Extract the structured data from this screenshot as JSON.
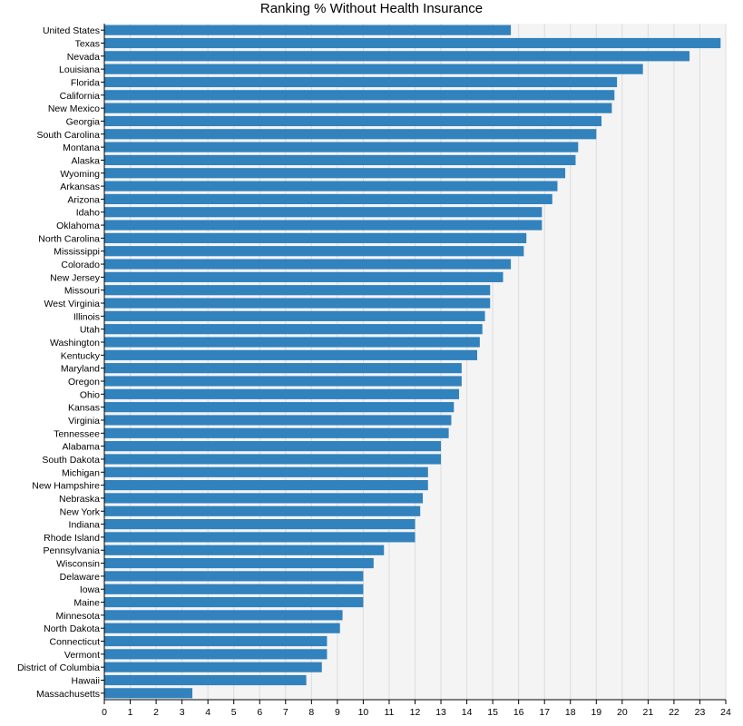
{
  "chart_data": {
    "type": "bar",
    "orientation": "horizontal",
    "title": "Ranking % Without Health Insurance",
    "xlabel": "",
    "ylabel": "",
    "xlim": [
      0,
      24
    ],
    "xticks": [
      0,
      1,
      2,
      3,
      4,
      5,
      6,
      7,
      8,
      9,
      10,
      11,
      12,
      13,
      14,
      15,
      16,
      17,
      18,
      19,
      20,
      21,
      22,
      23,
      24
    ],
    "grid": "vertical",
    "bar_color": "#3182bd",
    "plot_background": "#f4f4f4",
    "categories": [
      "United States",
      "Texas",
      "Nevada",
      "Louisiana",
      "Florida",
      "California",
      "New Mexico",
      "Georgia",
      "South Carolina",
      "Montana",
      "Alaska",
      "Wyoming",
      "Arkansas",
      "Arizona",
      "Idaho",
      "Oklahoma",
      "North Carolina",
      "Mississippi",
      "Colorado",
      "New Jersey",
      "Missouri",
      "West Virginia",
      "Illinois",
      "Utah",
      "Washington",
      "Kentucky",
      "Maryland",
      "Oregon",
      "Ohio",
      "Kansas",
      "Virginia",
      "Tennessee",
      "Alabama",
      "South Dakota",
      "Michigan",
      "New Hampshire",
      "Nebraska",
      "New York",
      "Indiana",
      "Rhode Island",
      "Pennsylvania",
      "Wisconsin",
      "Delaware",
      "Iowa",
      "Maine",
      "Minnesota",
      "North Dakota",
      "Connecticut",
      "Vermont",
      "District of Columbia",
      "Hawaii",
      "Massachusetts"
    ],
    "values": [
      15.7,
      23.8,
      22.6,
      20.8,
      19.8,
      19.7,
      19.6,
      19.2,
      19.0,
      18.3,
      18.2,
      17.8,
      17.5,
      17.3,
      16.9,
      16.9,
      16.3,
      16.2,
      15.7,
      15.4,
      14.9,
      14.9,
      14.7,
      14.6,
      14.5,
      14.4,
      13.8,
      13.8,
      13.7,
      13.5,
      13.4,
      13.3,
      13.0,
      13.0,
      12.5,
      12.5,
      12.3,
      12.2,
      12.0,
      12.0,
      10.8,
      10.4,
      10.0,
      10.0,
      10.0,
      9.2,
      9.1,
      8.6,
      8.6,
      8.4,
      7.8,
      3.4
    ]
  }
}
